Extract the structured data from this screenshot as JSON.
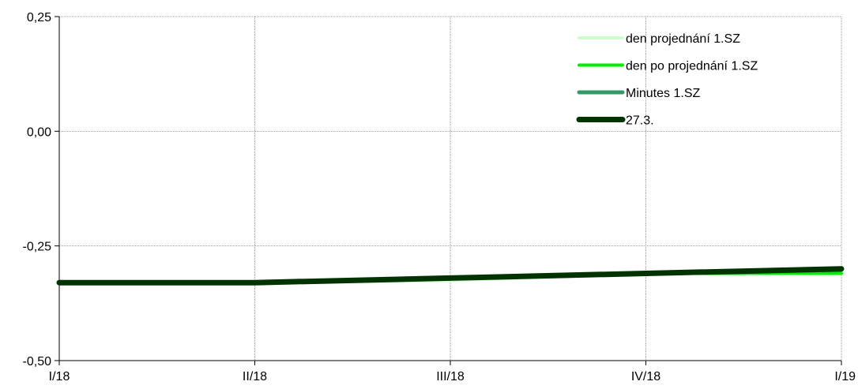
{
  "chart_data": {
    "type": "line",
    "title": "",
    "xlabel": "",
    "ylabel": "",
    "categories": [
      "I/18",
      "II/18",
      "III/18",
      "IV/18",
      "I/19"
    ],
    "ylim": [
      -0.5,
      0.25
    ],
    "yticks": [
      -0.5,
      -0.25,
      0.0,
      0.25
    ],
    "ytick_labels": [
      "-0,50",
      "-0,25",
      "0,00",
      "0,25"
    ],
    "grid": true,
    "legend_position": "top-right",
    "series": [
      {
        "name": "den projednání 1.SZ",
        "color": "#ccffcc",
        "values": [
          -0.33,
          -0.33,
          -0.325,
          -0.31,
          -0.305
        ]
      },
      {
        "name": "den po projednání 1.SZ",
        "color": "#00ee00",
        "values": [
          -0.33,
          -0.33,
          -0.32,
          -0.31,
          -0.31
        ]
      },
      {
        "name": "Minutes 1.SZ",
        "color": "#339966",
        "values": [
          -0.33,
          -0.33,
          -0.32,
          -0.31,
          -0.302
        ]
      },
      {
        "name": "27.3.",
        "color": "#003300",
        "values": [
          -0.33,
          -0.33,
          -0.32,
          -0.31,
          -0.3
        ]
      }
    ]
  }
}
